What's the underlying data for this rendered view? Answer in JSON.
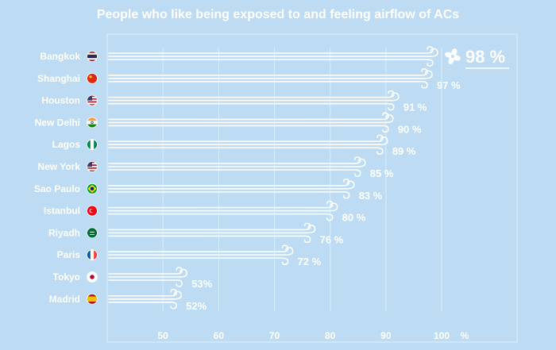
{
  "chart_data": {
    "type": "bar",
    "title": "People who like being exposed to and feeling airflow of ACs",
    "categories": [
      "Bangkok",
      "Shanghai",
      "Houston",
      "New Delhi",
      "Lagos",
      "New York",
      "Sao Paulo",
      "Istanbul",
      "Riyadh",
      "Paris",
      "Tokyo",
      "Madrid"
    ],
    "values": [
      98,
      97,
      91,
      90,
      89,
      85,
      83,
      80,
      76,
      72,
      53,
      52
    ],
    "value_labels": [
      "98 %",
      "97 %",
      "91 %",
      "90 %",
      "89 %",
      "85 %",
      "83 %",
      "80 %",
      "76 %",
      "72 %",
      "53%",
      "52%"
    ],
    "flags": [
      "Thailand",
      "China",
      "United States",
      "India",
      "Nigeria",
      "United States",
      "Brazil",
      "Turkey",
      "Saudi Arabia",
      "France",
      "Japan",
      "Spain"
    ],
    "x_ticks": [
      50,
      60,
      70,
      80,
      90,
      100
    ],
    "x_unit": "%",
    "xlim": [
      40,
      100
    ],
    "highlight_icon": "fan-icon",
    "colors": {
      "background": "#bddcf3",
      "bar": "#ffffff",
      "text": "#ffffff"
    }
  }
}
